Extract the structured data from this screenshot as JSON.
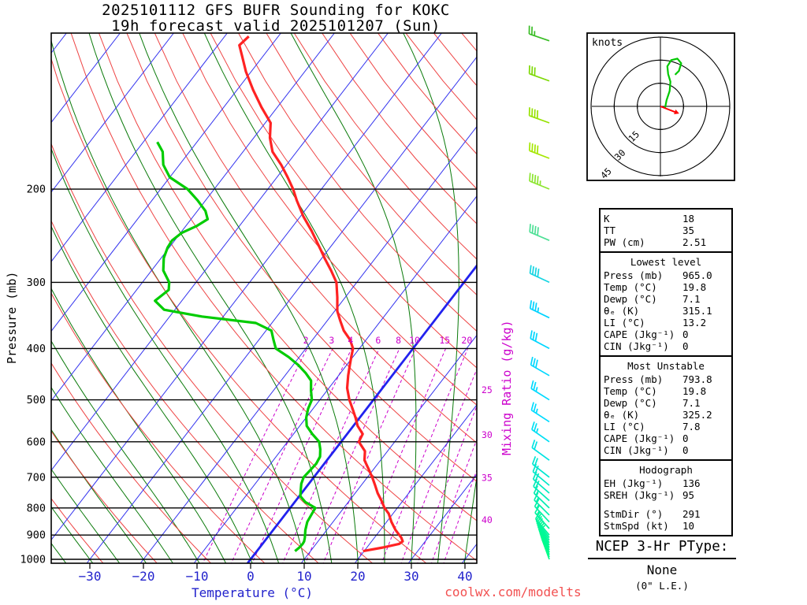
{
  "title": {
    "line1": "2025101112 GFS BUFR Sounding for KOKC",
    "line2": "19h forecast valid 2025101207 (Sun)"
  },
  "axes": {
    "pressure_label": "Pressure (mb)",
    "temperature_label": "Temperature (°C)",
    "mixing_ratio_label": "Mixing Ratio (g/kg)",
    "pressure_ticks": [
      200,
      300,
      400,
      500,
      600,
      700,
      800,
      900,
      1000
    ],
    "temperature_ticks": [
      -30,
      -20,
      -10,
      0,
      10,
      20,
      30,
      40
    ]
  },
  "chart_data": {
    "type": "skewt_log_p_sounding",
    "station": "KOKC",
    "model": "GFS BUFR",
    "run_cycle": "2025101112",
    "forecast_hour": "19h",
    "valid_time": "2025101207 (Sun)",
    "pressure_range_mb": [
      100,
      1050
    ],
    "temperature_profile": {
      "units": [
        "mb",
        "C"
      ],
      "points_p_t": [
        [
          965,
          19.8
        ],
        [
          950,
          23.0
        ],
        [
          935,
          25.5
        ],
        [
          925,
          25.8
        ],
        [
          910,
          25.0
        ],
        [
          880,
          22.8
        ],
        [
          850,
          20.9
        ],
        [
          820,
          19.2
        ],
        [
          800,
          17.6
        ],
        [
          775,
          16.0
        ],
        [
          750,
          14.2
        ],
        [
          725,
          12.6
        ],
        [
          700,
          10.9
        ],
        [
          675,
          9.0
        ],
        [
          650,
          7.0
        ],
        [
          625,
          5.8
        ],
        [
          600,
          3.3
        ],
        [
          580,
          2.9
        ],
        [
          560,
          0.8
        ],
        [
          540,
          -0.8
        ],
        [
          520,
          -2.6
        ],
        [
          500,
          -4.5
        ],
        [
          475,
          -6.6
        ],
        [
          450,
          -8.2
        ],
        [
          430,
          -9.4
        ],
        [
          415,
          -10.3
        ],
        [
          400,
          -11.2
        ],
        [
          385,
          -13.0
        ],
        [
          370,
          -15.5
        ],
        [
          355,
          -17.5
        ],
        [
          340,
          -19.5
        ],
        [
          320,
          -21.5
        ],
        [
          300,
          -23.8
        ],
        [
          285,
          -26.5
        ],
        [
          270,
          -29.5
        ],
        [
          260,
          -31.5
        ],
        [
          250,
          -33.6
        ],
        [
          240,
          -35.8
        ],
        [
          225,
          -39.5
        ],
        [
          210,
          -43.0
        ],
        [
          200,
          -45.3
        ],
        [
          190,
          -48.0
        ],
        [
          180,
          -51.0
        ],
        [
          170,
          -54.5
        ],
        [
          160,
          -57.0
        ],
        [
          150,
          -59.0
        ],
        [
          140,
          -63.0
        ],
        [
          130,
          -67.0
        ],
        [
          120,
          -71.0
        ],
        [
          112,
          -74.0
        ],
        [
          107,
          -76.0
        ],
        [
          103,
          -75.5
        ]
      ]
    },
    "dewpoint_profile": {
      "units": [
        "mb",
        "C"
      ],
      "points_p_td": [
        [
          965,
          7.1
        ],
        [
          950,
          7.4
        ],
        [
          935,
          7.5
        ],
        [
          925,
          7.4
        ],
        [
          910,
          7.0
        ],
        [
          880,
          6.0
        ],
        [
          850,
          5.2
        ],
        [
          820,
          4.9
        ],
        [
          800,
          4.7
        ],
        [
          780,
          2.0
        ],
        [
          760,
          0.2
        ],
        [
          740,
          -0.6
        ],
        [
          720,
          -1.4
        ],
        [
          700,
          -1.9
        ],
        [
          680,
          -1.7
        ],
        [
          660,
          -1.5
        ],
        [
          640,
          -1.8
        ],
        [
          620,
          -2.8
        ],
        [
          600,
          -4.1
        ],
        [
          580,
          -6.5
        ],
        [
          560,
          -8.7
        ],
        [
          540,
          -10.0
        ],
        [
          520,
          -10.9
        ],
        [
          500,
          -11.5
        ],
        [
          480,
          -13.0
        ],
        [
          460,
          -14.4
        ],
        [
          445,
          -16.5
        ],
        [
          430,
          -19.0
        ],
        [
          415,
          -22.0
        ],
        [
          400,
          -25.6
        ],
        [
          385,
          -27.3
        ],
        [
          370,
          -29.0
        ],
        [
          358,
          -33.0
        ],
        [
          348,
          -44.0
        ],
        [
          338,
          -52.0
        ],
        [
          325,
          -55.0
        ],
        [
          310,
          -54.0
        ],
        [
          300,
          -55.0
        ],
        [
          285,
          -57.8
        ],
        [
          270,
          -59.5
        ],
        [
          258,
          -60.3
        ],
        [
          250,
          -60.5
        ],
        [
          242,
          -59.8
        ],
        [
          235,
          -58.0
        ],
        [
          228,
          -56.9
        ],
        [
          220,
          -58.5
        ],
        [
          210,
          -61.5
        ],
        [
          200,
          -65.0
        ],
        [
          190,
          -70.0
        ],
        [
          180,
          -73.0
        ],
        [
          170,
          -75.0
        ],
        [
          163,
          -77.4
        ]
      ]
    },
    "wind_profile_format": "[pressure_mb, dir_from_deg, speed_kt]",
    "wind_profile": [
      [
        1000,
        340,
        5
      ],
      [
        990,
        338,
        5
      ],
      [
        980,
        336,
        6
      ],
      [
        970,
        334,
        7
      ],
      [
        960,
        332,
        8
      ],
      [
        950,
        330,
        8
      ],
      [
        940,
        328,
        9
      ],
      [
        930,
        326,
        10
      ],
      [
        920,
        324,
        10
      ],
      [
        910,
        322,
        11
      ],
      [
        900,
        320,
        12
      ],
      [
        875,
        318,
        13
      ],
      [
        850,
        317,
        15
      ],
      [
        825,
        315,
        15
      ],
      [
        800,
        314,
        16
      ],
      [
        775,
        312,
        18
      ],
      [
        750,
        311,
        19
      ],
      [
        725,
        310,
        20
      ],
      [
        700,
        308,
        20
      ],
      [
        650,
        306,
        22
      ],
      [
        600,
        305,
        24
      ],
      [
        550,
        303,
        25
      ],
      [
        500,
        302,
        27
      ],
      [
        450,
        300,
        30
      ],
      [
        400,
        298,
        32
      ],
      [
        350,
        296,
        35
      ],
      [
        300,
        295,
        38
      ],
      [
        250,
        293,
        42
      ],
      [
        200,
        292,
        45
      ],
      [
        175,
        291,
        42
      ],
      [
        150,
        290,
        38
      ],
      [
        125,
        290,
        32
      ],
      [
        105,
        289,
        26
      ]
    ],
    "mixing_ratio_lines_gkg": [
      2,
      3,
      4,
      6,
      8,
      10,
      15,
      20,
      25,
      30,
      35,
      40
    ],
    "isotherm_step_c": 10,
    "dry_adiabat_step_k": 10,
    "moist_adiabat_step_c": 5,
    "hodograph": {
      "unit_label": "knots",
      "rings_kt": [
        15,
        30,
        45
      ],
      "trace_uv_kt": [
        [
          3,
          -1
        ],
        [
          4,
          4
        ],
        [
          6,
          10
        ],
        [
          6.5,
          16
        ],
        [
          5,
          21
        ],
        [
          4.5,
          26
        ],
        [
          7,
          30
        ],
        [
          11,
          31
        ],
        [
          13.5,
          28
        ],
        [
          12,
          23
        ],
        [
          9.5,
          20.5
        ]
      ],
      "storm_motion": {
        "dir_deg": 291,
        "speed_kt": 10
      }
    }
  },
  "stats": {
    "indices": [
      [
        "K",
        "18"
      ],
      [
        "TT",
        "35"
      ],
      [
        "PW (cm)",
        "2.51"
      ]
    ],
    "sections": [
      {
        "title": "Lowest level",
        "rows": [
          [
            "Press (mb)",
            "965.0"
          ],
          [
            "Temp (°C)",
            "19.8"
          ],
          [
            "Dewp (°C)",
            "7.1"
          ],
          [
            "θₑ (K)",
            "315.1"
          ],
          [
            "LI (°C)",
            "13.2"
          ],
          [
            "CAPE (Jkg⁻¹)",
            "0"
          ],
          [
            "CIN (Jkg⁻¹)",
            "0"
          ]
        ]
      },
      {
        "title": "Most Unstable",
        "rows": [
          [
            "Press (mb)",
            "793.8"
          ],
          [
            "Temp (°C)",
            "19.8"
          ],
          [
            "Dewp (°C)",
            "7.1"
          ],
          [
            "θₑ (K)",
            "325.2"
          ],
          [
            "LI (°C)",
            "7.8"
          ],
          [
            "CAPE (Jkg⁻¹)",
            "0"
          ],
          [
            "CIN (Jkg⁻¹)",
            "0"
          ]
        ]
      },
      {
        "title": "Hodograph",
        "rows": [
          [
            "EH (Jkg⁻¹)",
            "136"
          ],
          [
            "SREH (Jkg⁻¹)",
            "95"
          ]
        ],
        "rows2": [
          [
            "StmDir (°)",
            "291"
          ],
          [
            "StmSpd (kt)",
            "10"
          ]
        ]
      }
    ]
  },
  "ptype": {
    "heading": "NCEP 3-Hr PType:",
    "value": "None",
    "note": "(0\" L.E.)"
  },
  "watermark": "coolwx.com/modelts",
  "colors": {
    "temperature_curve": "#ff2222",
    "dewpoint_curve": "#00cc00",
    "isotherm": "#3333ee",
    "zero_isotherm": "#2222ee",
    "dry_adiabat": "#ee4444",
    "moist_adiabat": "#0a7a0a",
    "mixing_ratio": "#cc00cc",
    "pressure_line": "#000000",
    "axis_blue": "#2222cc",
    "hodograph_trace": "#00c800",
    "storm_motion_arrow": "#ff0000",
    "watermark_red": "#f25050",
    "barb_gradient": [
      [
        0,
        "#2db82d"
      ],
      [
        0.1,
        "#86dc00"
      ],
      [
        0.25,
        "#a8e800"
      ],
      [
        0.38,
        "#55e08a"
      ],
      [
        0.5,
        "#00d2ff"
      ],
      [
        0.75,
        "#00dcff"
      ],
      [
        0.9,
        "#00eeb0"
      ],
      [
        1.0,
        "#00ff85"
      ]
    ]
  }
}
